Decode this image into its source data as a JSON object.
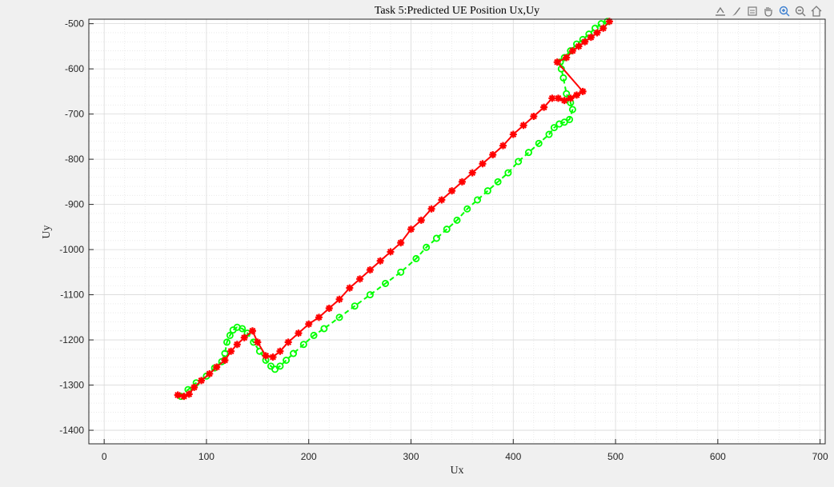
{
  "toolbar": {
    "icons": [
      "export-icon",
      "brush-icon",
      "datatip-icon",
      "pan-hand-icon",
      "zoom-in-icon",
      "zoom-out-icon",
      "home-icon"
    ]
  },
  "colors": {
    "figure_bg": "#f0f0f0",
    "axes_bg": "#ffffff",
    "grid_major": "#d9d9d9",
    "grid_minor": "#e6e6e6",
    "series_true": "#00ff00",
    "series_pred": "#ff0000",
    "text": "#262626"
  },
  "chart_data": {
    "type": "line",
    "title": "Task 5:Predicted UE Position Ux,Uy",
    "xlabel": "Ux",
    "ylabel": "Uy",
    "xlim": [
      -15,
      705
    ],
    "ylim": [
      -1430,
      -490
    ],
    "xticks": [
      0,
      100,
      200,
      300,
      400,
      500,
      600,
      700
    ],
    "yticks": [
      -500,
      -600,
      -700,
      -800,
      -900,
      -1000,
      -1100,
      -1200,
      -1300,
      -1400
    ],
    "grid": true,
    "minor_grid": true,
    "series": [
      {
        "color": "#00ff00",
        "marker": "circle",
        "linestyle": "dashed",
        "x": [
          75,
          82,
          90,
          100,
          108,
          115,
          118,
          120,
          123,
          126,
          130,
          135,
          140,
          146,
          152,
          158,
          163,
          167,
          172,
          178,
          185,
          195,
          205,
          215,
          230,
          245,
          260,
          275,
          290,
          305,
          315,
          325,
          335,
          345,
          355,
          365,
          375,
          385,
          395,
          405,
          415,
          425,
          435,
          440,
          445,
          450,
          455,
          458,
          456,
          452,
          449,
          447,
          446,
          450,
          456,
          462,
          468,
          474,
          480,
          486,
          492
        ],
        "y": [
          -1325,
          -1310,
          -1295,
          -1280,
          -1262,
          -1248,
          -1230,
          -1205,
          -1190,
          -1178,
          -1172,
          -1175,
          -1185,
          -1205,
          -1225,
          -1245,
          -1258,
          -1265,
          -1258,
          -1245,
          -1230,
          -1210,
          -1190,
          -1175,
          -1150,
          -1125,
          -1100,
          -1075,
          -1050,
          -1020,
          -995,
          -975,
          -955,
          -935,
          -910,
          -890,
          -870,
          -850,
          -830,
          -805,
          -785,
          -765,
          -745,
          -730,
          -722,
          -718,
          -712,
          -690,
          -675,
          -655,
          -620,
          -600,
          -585,
          -575,
          -560,
          -545,
          -535,
          -523,
          -510,
          -500,
          -495
        ]
      },
      {
        "color": "#ff0000",
        "marker": "star",
        "linestyle": "solid",
        "x": [
          72,
          78,
          83,
          88,
          95,
          103,
          110,
          118,
          124,
          130,
          137,
          145,
          150,
          158,
          165,
          172,
          180,
          190,
          200,
          210,
          220,
          230,
          240,
          250,
          260,
          270,
          280,
          290,
          300,
          310,
          320,
          330,
          340,
          350,
          360,
          370,
          380,
          390,
          400,
          410,
          420,
          430,
          438,
          444,
          450,
          456,
          462,
          468,
          443,
          452,
          458,
          464,
          470,
          476,
          482,
          488,
          494
        ],
        "y": [
          -1322,
          -1325,
          -1320,
          -1305,
          -1290,
          -1275,
          -1260,
          -1245,
          -1225,
          -1210,
          -1195,
          -1180,
          -1205,
          -1235,
          -1238,
          -1225,
          -1205,
          -1185,
          -1165,
          -1150,
          -1130,
          -1110,
          -1085,
          -1065,
          -1045,
          -1025,
          -1005,
          -985,
          -955,
          -935,
          -910,
          -890,
          -870,
          -850,
          -830,
          -810,
          -790,
          -770,
          -745,
          -725,
          -705,
          -685,
          -665,
          -665,
          -670,
          -665,
          -658,
          -650,
          -585,
          -575,
          -560,
          -550,
          -540,
          -530,
          -520,
          -510,
          -495
        ]
      }
    ]
  }
}
